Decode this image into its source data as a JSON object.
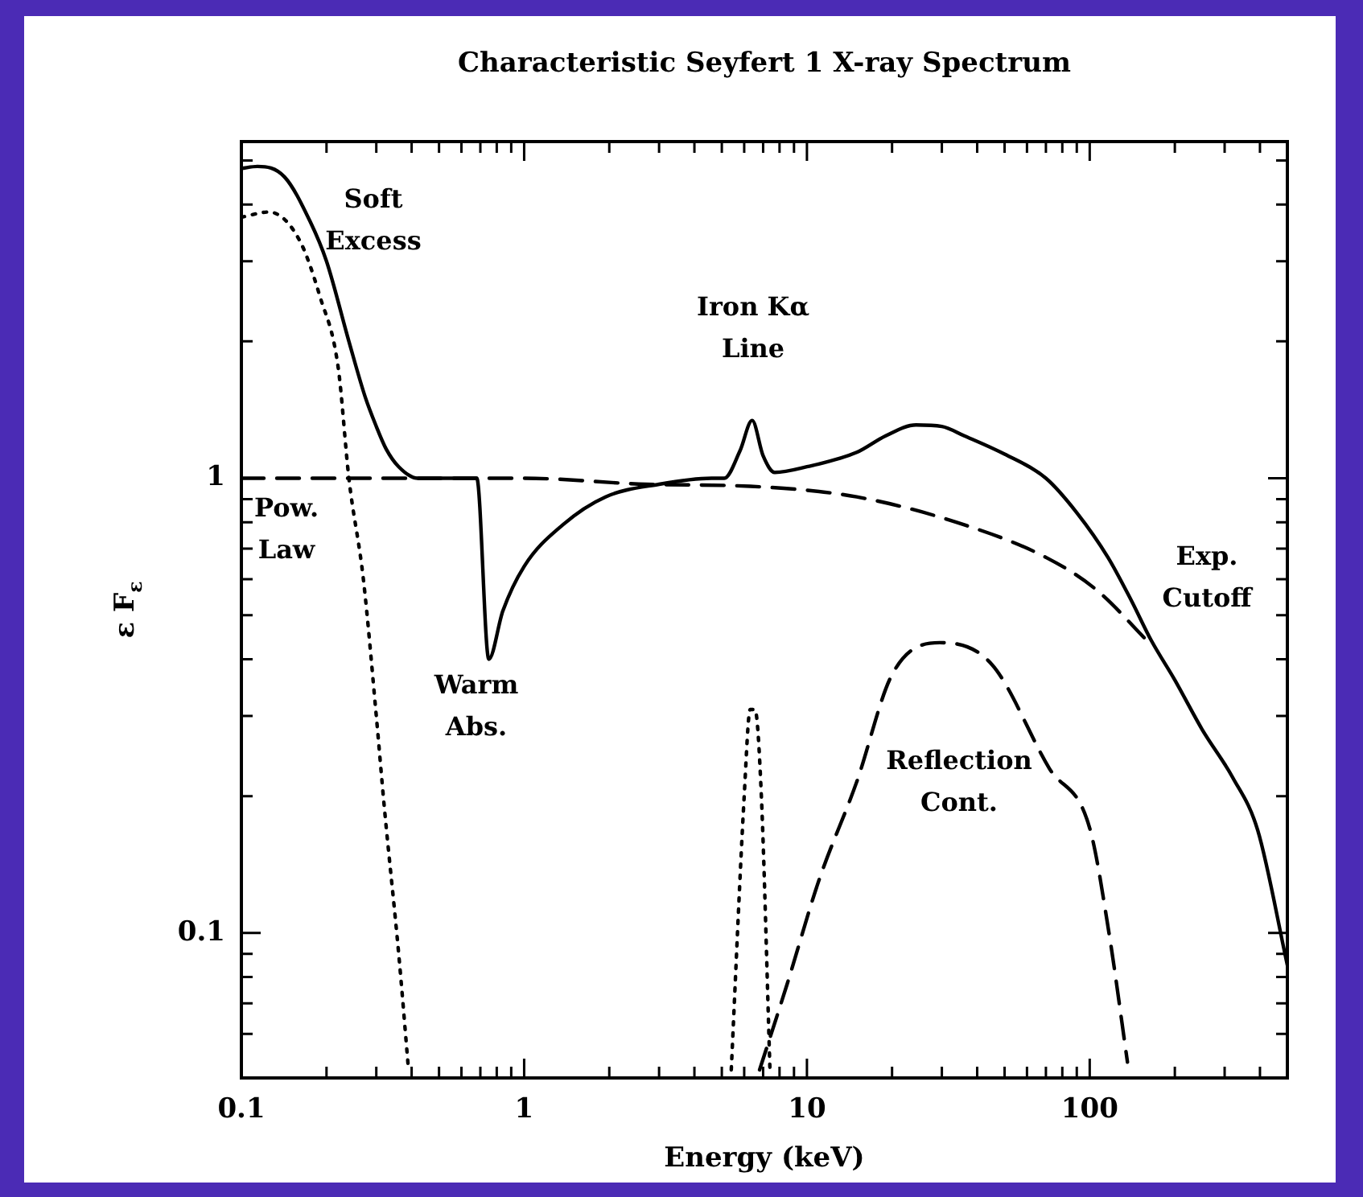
{
  "chart_data": {
    "type": "line",
    "title": "Characteristic Seyfert 1 X-ray Spectrum",
    "xlabel": "Energy (keV)",
    "ylabel": "ε F$_{ε}$",
    "log": "xy",
    "grid": false,
    "legend": false,
    "marker": "none",
    "xlim": [
      0.1,
      500
    ],
    "ylim": [
      0.048,
      5.5
    ],
    "xticks": [
      0.1,
      {
        "value": 0.2,
        "label": null
      },
      {
        "value": 0.3,
        "label": null
      },
      {
        "value": 0.4,
        "label": null
      },
      {
        "value": 0.5,
        "label": null
      },
      {
        "value": 0.6,
        "label": null
      },
      {
        "value": 0.7,
        "label": null
      },
      {
        "value": 0.8,
        "label": null
      },
      {
        "value": 0.9,
        "label": null
      },
      1,
      {
        "value": 2,
        "label": null
      },
      {
        "value": 3,
        "label": null
      },
      {
        "value": 4,
        "label": null
      },
      {
        "value": 5,
        "label": null
      },
      {
        "value": 6,
        "label": null
      },
      {
        "value": 7,
        "label": null
      },
      {
        "value": 8,
        "label": null
      },
      {
        "value": 9,
        "label": null
      },
      10,
      {
        "value": 20,
        "label": null
      },
      {
        "value": 30,
        "label": null
      },
      {
        "value": 40,
        "label": null
      },
      {
        "value": 50,
        "label": null
      },
      {
        "value": 60,
        "label": null
      },
      {
        "value": 70,
        "label": null
      },
      {
        "value": 80,
        "label": null
      },
      {
        "value": 90,
        "label": null
      },
      100,
      {
        "value": 200,
        "label": null
      },
      {
        "value": 300,
        "label": null
      },
      {
        "value": 400,
        "label": null
      },
      {
        "value": 500,
        "label": null
      }
    ],
    "yticks": [
      {
        "value": 0.06,
        "label": null
      },
      {
        "value": 0.07,
        "label": null
      },
      {
        "value": 0.08,
        "label": null
      },
      {
        "value": 0.09,
        "label": null
      },
      0.1,
      {
        "value": 0.2,
        "label": null
      },
      {
        "value": 0.3,
        "label": null
      },
      {
        "value": 0.4,
        "label": null
      },
      {
        "value": 0.5,
        "label": null
      },
      {
        "value": 0.6,
        "label": null
      },
      {
        "value": 0.7,
        "label": null
      },
      {
        "value": 0.8,
        "label": null
      },
      {
        "value": 0.9,
        "label": null
      },
      1,
      {
        "value": 2,
        "label": null
      },
      {
        "value": 3,
        "label": null
      },
      {
        "value": 4,
        "label": null
      },
      {
        "value": 5,
        "label": null
      }
    ],
    "series": [
      {
        "color": "#000000",
        "line_style": "solid",
        "x": [
          0.1,
          0.114,
          0.142,
          0.175,
          0.2,
          0.24,
          0.274,
          0.3,
          0.325,
          0.36,
          0.42,
          0.68,
          0.75,
          0.84,
          1.0,
          1.37,
          1.94,
          3.0,
          4.6,
          5.1,
          5.8,
          6.4,
          7.0,
          7.7,
          10,
          15,
          19,
          24.3,
          30,
          36,
          50,
          70,
          90,
          116,
          140,
          165,
          200,
          250,
          320,
          393,
          500
        ],
        "values": [
          4.8,
          4.85,
          4.6,
          3.67,
          3.0,
          2.0,
          1.51,
          1.3,
          1.16,
          1.06,
          1.0,
          1.0,
          0.4,
          0.51,
          0.64,
          0.79,
          0.91,
          0.97,
          1.0,
          1.0,
          1.15,
          1.34,
          1.12,
          1.03,
          1.06,
          1.14,
          1.24,
          1.31,
          1.3,
          1.24,
          1.13,
          1.0,
          0.84,
          0.67,
          0.54,
          0.44,
          0.36,
          0.28,
          0.22,
          0.168,
          0.085
        ]
      },
      {
        "color": "#000000",
        "line_style": "dashed",
        "x": [
          0.1,
          1,
          2.7,
          6.3,
          15,
          36,
          70,
          105,
          165
        ],
        "values": [
          1.0,
          1.0,
          0.97,
          0.96,
          0.91,
          0.79,
          0.67,
          0.57,
          0.43
        ]
      },
      {
        "color": "#000000",
        "line_style": "dotted",
        "x": [
          0.1,
          0.125,
          0.16,
          0.19,
          0.22,
          0.24,
          0.27,
          0.3,
          0.32,
          0.36,
          0.39
        ],
        "values": [
          3.75,
          3.85,
          3.35,
          2.5,
          1.75,
          1.0,
          0.6,
          0.3,
          0.19,
          0.09,
          0.05
        ]
      },
      {
        "color": "#000000",
        "line_style": "dotted",
        "x": [
          5.4,
          6.0,
          6.3,
          6.55,
          6.9,
          7.4
        ],
        "values": [
          0.05,
          0.2,
          0.31,
          0.31,
          0.2,
          0.05
        ]
      },
      {
        "color": "#000000",
        "line_style": "dashed",
        "x": [
          6.8,
          8.5,
          11,
          15,
          20,
          29.5,
          45,
          72,
          100,
          117,
          136
        ],
        "values": [
          0.05,
          0.077,
          0.13,
          0.215,
          0.37,
          0.435,
          0.39,
          0.23,
          0.17,
          0.1,
          0.052
        ]
      }
    ],
    "annotations": [
      "Soft\nExcess",
      "Iron Kα\nLine",
      "Pow.\nLaw",
      "Warm\nAbs.",
      "Reflection\nCont.",
      "Exp.\nCutoff"
    ]
  }
}
